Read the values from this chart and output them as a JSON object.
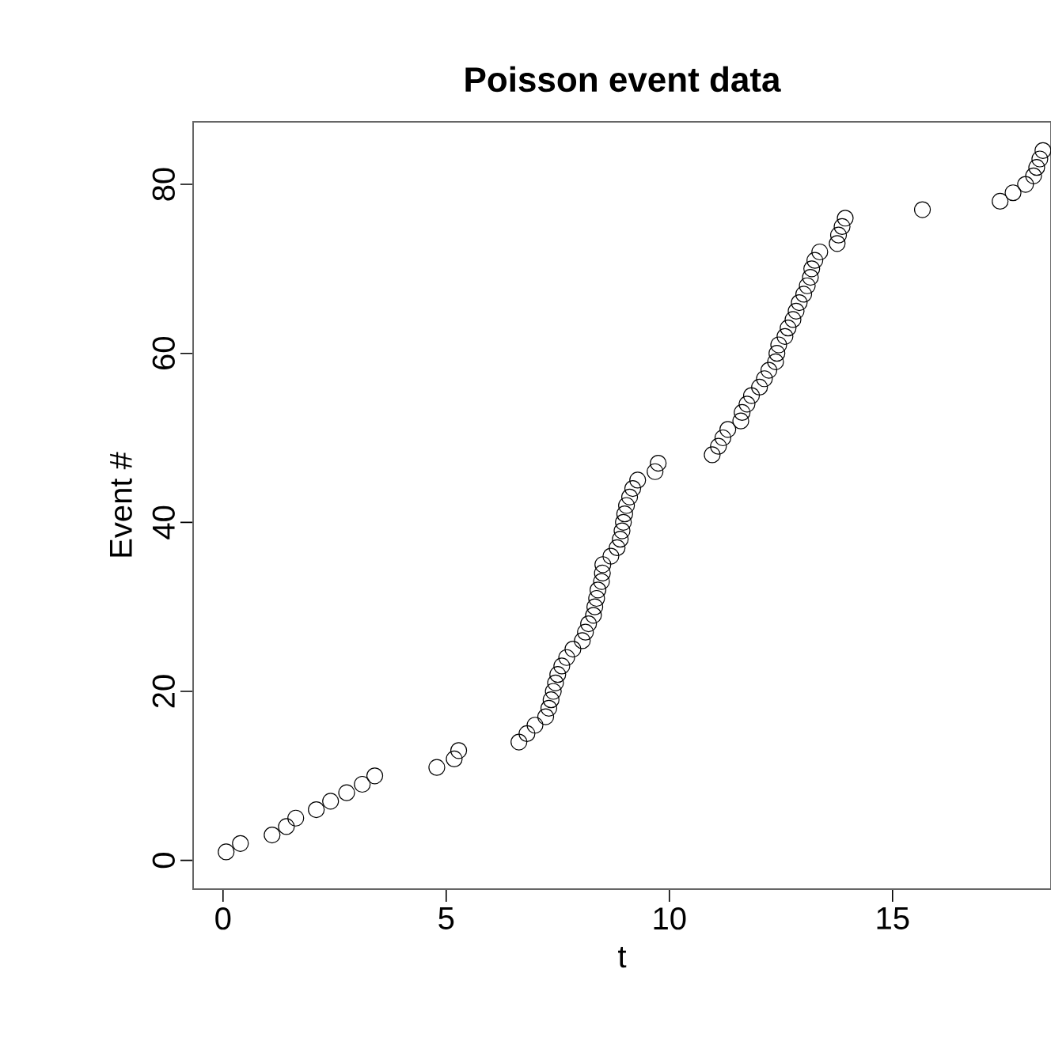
{
  "chart_data": {
    "type": "scatter",
    "title": "Poisson event data",
    "xlabel": "t",
    "ylabel": "Event #",
    "marker": "circle",
    "xlim": [
      -0.67,
      18.55
    ],
    "ylim": [
      -3.4,
      87.4
    ],
    "xticks": [
      0,
      5,
      10,
      15
    ],
    "yticks": [
      0,
      20,
      40,
      60,
      80
    ],
    "series": [
      {
        "color": "#000000",
        "x": [
          0.07,
          0.39,
          1.1,
          1.42,
          1.63,
          2.09,
          2.41,
          2.77,
          3.12,
          3.4,
          4.79,
          5.18,
          5.28,
          6.63,
          6.81,
          6.99,
          7.23,
          7.3,
          7.35,
          7.4,
          7.45,
          7.5,
          7.59,
          7.7,
          7.84,
          8.05,
          8.12,
          8.19,
          8.3,
          8.33,
          8.37,
          8.4,
          8.48,
          8.5,
          8.51,
          8.69,
          8.83,
          8.9,
          8.94,
          8.97,
          9.0,
          9.04,
          9.11,
          9.18,
          9.29,
          9.68,
          9.75,
          10.96,
          11.1,
          11.2,
          11.31,
          11.6,
          11.63,
          11.74,
          11.84,
          12.02,
          12.13,
          12.23,
          12.38,
          12.41,
          12.45,
          12.59,
          12.66,
          12.77,
          12.84,
          12.91,
          13.01,
          13.09,
          13.16,
          13.19,
          13.26,
          13.37,
          13.76,
          13.79,
          13.87,
          13.94,
          15.67,
          17.41,
          17.7,
          17.98,
          18.16,
          18.23,
          18.3,
          18.37
        ],
        "values": [
          1,
          2,
          3,
          4,
          5,
          6,
          7,
          8,
          9,
          10,
          11,
          12,
          13,
          14,
          15,
          16,
          17,
          18,
          19,
          20,
          21,
          22,
          23,
          24,
          25,
          26,
          27,
          28,
          29,
          30,
          31,
          32,
          33,
          34,
          35,
          36,
          37,
          38,
          39,
          40,
          41,
          42,
          43,
          44,
          45,
          46,
          47,
          48,
          49,
          50,
          51,
          52,
          53,
          54,
          55,
          56,
          57,
          58,
          59,
          60,
          61,
          62,
          63,
          64,
          65,
          66,
          67,
          68,
          69,
          70,
          71,
          72,
          73,
          74,
          75,
          76,
          77,
          78,
          79,
          80,
          81,
          82,
          83,
          84
        ]
      }
    ]
  }
}
